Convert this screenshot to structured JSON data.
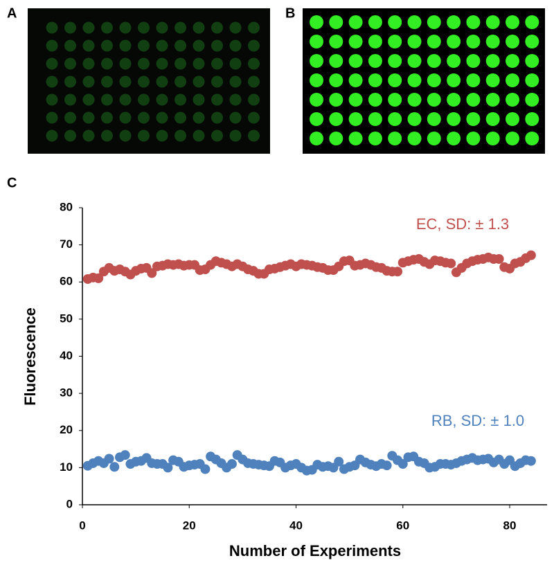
{
  "panel_labels": [
    "A",
    "B",
    "C"
  ],
  "chart_data": {
    "type": "scatter",
    "xlabel": "Number of Experiments",
    "ylabel": "Fluorescence",
    "xlim": [
      0,
      87
    ],
    "xticks": [
      0,
      20,
      40,
      60,
      80
    ],
    "ylim": [
      0,
      80
    ],
    "yticks": [
      0,
      10,
      20,
      30,
      40,
      50,
      60,
      70,
      80
    ],
    "x": [
      1,
      2,
      3,
      4,
      5,
      6,
      7,
      8,
      9,
      10,
      11,
      12,
      13,
      14,
      15,
      16,
      17,
      18,
      19,
      20,
      21,
      22,
      23,
      24,
      25,
      26,
      27,
      28,
      29,
      30,
      31,
      32,
      33,
      34,
      35,
      36,
      37,
      38,
      39,
      40,
      41,
      42,
      43,
      44,
      45,
      46,
      47,
      48,
      49,
      50,
      51,
      52,
      53,
      54,
      55,
      56,
      57,
      58,
      59,
      60,
      61,
      62,
      63,
      64,
      65,
      66,
      67,
      68,
      69,
      70,
      71,
      72,
      73,
      74,
      75,
      76,
      77,
      78,
      79,
      80,
      81,
      82,
      83,
      84
    ],
    "series": [
      {
        "color": "#c0504d",
        "values": [
          60.8,
          61.2,
          61,
          62.8,
          63.8,
          63,
          63.4,
          62.8,
          62,
          63,
          63.6,
          63.8,
          62.4,
          64.2,
          64.4,
          64.8,
          64.6,
          64.8,
          64.4,
          64.6,
          64.6,
          63.2,
          63.4,
          64.6,
          65.6,
          65.2,
          64.8,
          64.2,
          64.8,
          64.2,
          63.4,
          63,
          62.2,
          62.2,
          63.4,
          63.6,
          64,
          64.4,
          64.8,
          64.2,
          64.8,
          64.6,
          64.4,
          64,
          63.8,
          63.2,
          63.2,
          64.2,
          65.6,
          65.8,
          64.4,
          64.6,
          65,
          64.6,
          64,
          63.8,
          63,
          62.8,
          62.8,
          65.2,
          65.6,
          66,
          66.2,
          65.4,
          64.8,
          65.8,
          65.6,
          65.2,
          65,
          62.6,
          63.8,
          65,
          65.6,
          66,
          66.2,
          66.6,
          66.2,
          66.2,
          64,
          63.6,
          65,
          65.4,
          66.4,
          67.2
        ]
      },
      {
        "color": "#4f81bd",
        "values": [
          10.5,
          11.2,
          11.8,
          11.2,
          12.4,
          10.2,
          12.8,
          13.4,
          11,
          11.6,
          11.8,
          12.6,
          11.2,
          11,
          11,
          10,
          12,
          11.6,
          10.2,
          10.6,
          10.8,
          11,
          9.6,
          13,
          12.2,
          11.2,
          10,
          11,
          13.4,
          12.2,
          11.2,
          11,
          10.8,
          10.6,
          10.4,
          11.8,
          11.4,
          10,
          10.6,
          11,
          10,
          9.2,
          9.4,
          10.8,
          10.2,
          10.4,
          10,
          11.6,
          9.6,
          10.2,
          10.6,
          12.2,
          11.4,
          10.8,
          10.4,
          11,
          10.6,
          13.2,
          12,
          11,
          12.8,
          13,
          11.6,
          11.2,
          10,
          10.2,
          11,
          11,
          10.8,
          11.2,
          11.8,
          12.2,
          12.6,
          12,
          12.2,
          12.4,
          11.4,
          12.2,
          11,
          12,
          10.4,
          11.2,
          12,
          11.8
        ]
      }
    ],
    "annotations": [
      {
        "text": "EC, SD: ± 1.3",
        "color": "#c0504d"
      },
      {
        "text": "RB, SD: ± 1.0",
        "color": "#4f81bd"
      }
    ]
  }
}
